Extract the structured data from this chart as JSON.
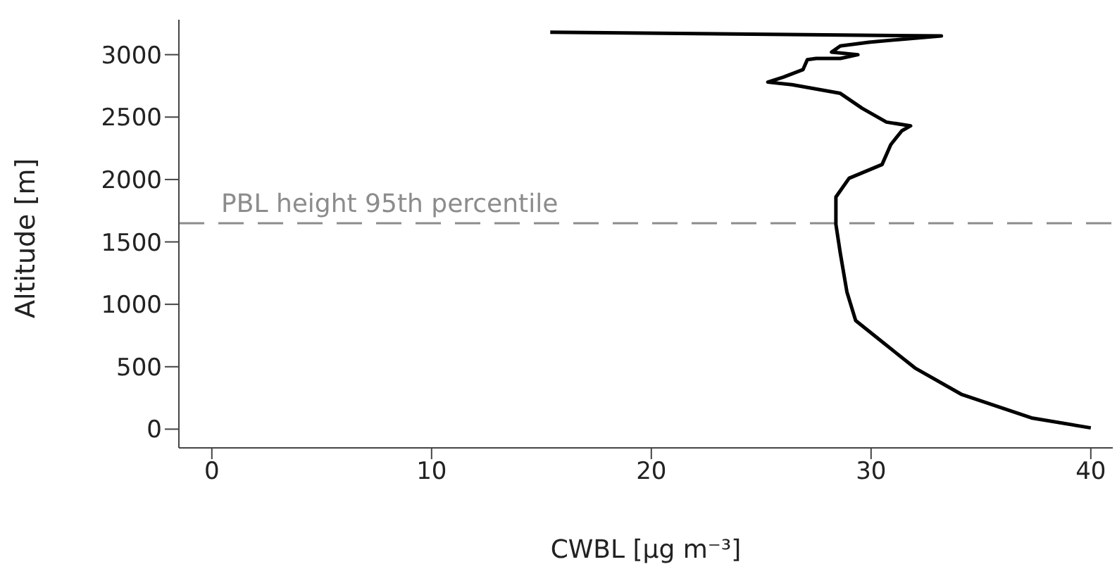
{
  "chart_data": {
    "type": "line",
    "xlabel": "CWBL [µg m⁻³]",
    "ylabel": "Altitude [m]",
    "xlim": [
      -1.5,
      41
    ],
    "xticks": [
      0,
      10,
      20,
      30,
      40
    ],
    "ylim": [
      -150,
      3280
    ],
    "yticks": [
      0,
      500,
      1000,
      1500,
      2000,
      2500,
      3000
    ],
    "marker": "none",
    "line_style": "solid",
    "series": [
      {
        "color": "#000000",
        "x": [
          40.0,
          37.3,
          34.1,
          32.0,
          30.5,
          29.3,
          28.9,
          28.6,
          28.4,
          28.4,
          29.0,
          30.5,
          30.9,
          31.4,
          31.8,
          30.7,
          29.6,
          28.6,
          26.4,
          25.3,
          26.0,
          26.9,
          27.1,
          27.5,
          28.6,
          29.4,
          28.2,
          28.6,
          29.9,
          33.2,
          15.4
        ],
        "values": [
          10,
          90,
          280,
          490,
          700,
          870,
          1100,
          1410,
          1640,
          1860,
          2010,
          2120,
          2280,
          2390,
          2430,
          2460,
          2570,
          2690,
          2760,
          2780,
          2820,
          2880,
          2960,
          2970,
          2970,
          3000,
          3020,
          3070,
          3100,
          3150,
          3180
        ]
      }
    ],
    "ref_lines": [
      {
        "axis": "y",
        "value": 1650,
        "label": "PBL height 95th percentile",
        "color": "#8c8c8c",
        "line_style": "dashed"
      }
    ]
  }
}
